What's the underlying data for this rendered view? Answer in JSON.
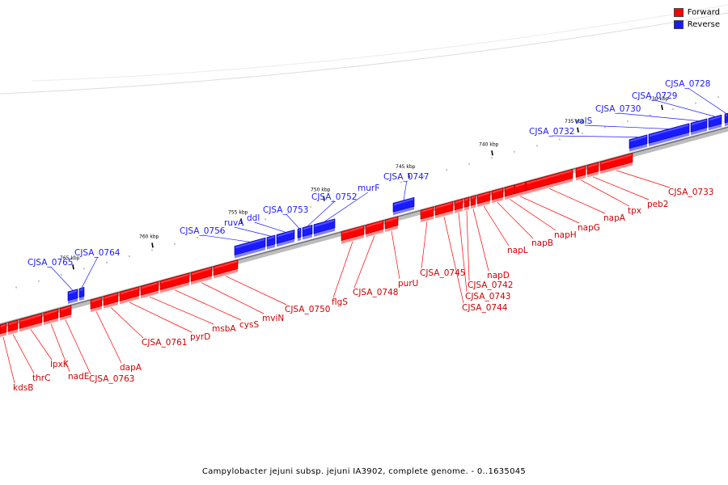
{
  "legend": {
    "forward": {
      "label": "Forward",
      "color": "#ff0000"
    },
    "reverse": {
      "label": "Reverse",
      "color": "#1a1aff"
    }
  },
  "caption": "Campylobacter jejuni subsp. jejuni IA3902, complete genome. - 0..1635045",
  "ticks": [
    "765 kbp",
    "760 kbp",
    "755 kbp",
    "750 kbp",
    "745 kbp",
    "740 kbp",
    "735 kbp",
    "730 kbp"
  ],
  "forward_genes": [
    "kdsB",
    "thrC",
    "lpxK",
    "nadE",
    "CJSA_0763",
    "dapA",
    "CJSA_0761",
    "pyrD",
    "msbA",
    "cysS",
    "mviN",
    "CJSA_0750",
    "flgS",
    "CJSA_0748",
    "purU",
    "CJSA_0745",
    "CJSA_0744",
    "CJSA_0743",
    "CJSA_0742",
    "napD",
    "napL",
    "napB",
    "napH",
    "napG",
    "napA",
    "tpx",
    "peb2",
    "CJSA_0733"
  ],
  "reverse_genes": [
    "CJSA_0765",
    "CJSA_0764",
    "CJSA_0756",
    "ruvA",
    "ddl",
    "CJSA_0753",
    "CJSA_0752",
    "murF",
    "CJSA_0747",
    "CJSA_0732",
    "valS",
    "CJSA_0730",
    "CJSA_0729",
    "CJSA_0728"
  ]
}
